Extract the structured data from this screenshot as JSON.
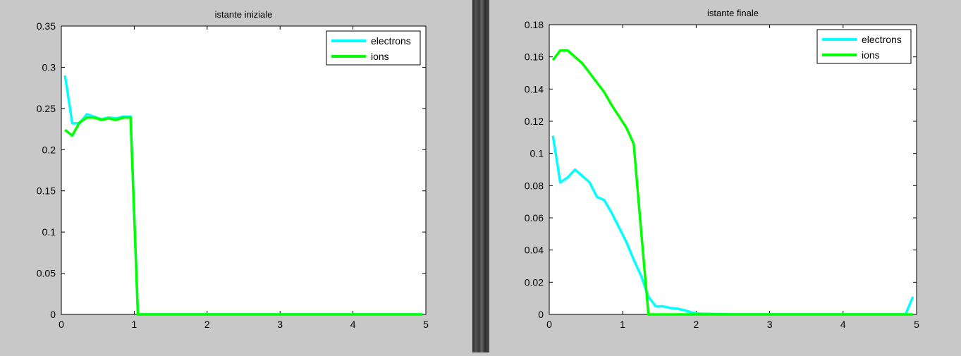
{
  "chart_data": [
    {
      "type": "line",
      "title": "istante iniziale",
      "xlabel": "",
      "ylabel": "",
      "xlim": [
        0,
        5
      ],
      "ylim": [
        0,
        0.35
      ],
      "xticks": [
        "0",
        "1",
        "2",
        "3",
        "4",
        "5"
      ],
      "yticks": [
        "0",
        "0.05",
        "0.1",
        "0.15",
        "0.2",
        "0.25",
        "0.3",
        "0.35"
      ],
      "grid": false,
      "legend_position": "top-right",
      "series": [
        {
          "name": "electrons",
          "color": "#00ffff",
          "x": [
            0.05,
            0.15,
            0.25,
            0.35,
            0.45,
            0.55,
            0.65,
            0.75,
            0.85,
            0.95,
            1.05,
            1.5,
            2.0,
            2.5,
            3.0,
            3.5,
            4.0,
            4.5,
            4.95
          ],
          "y": [
            0.29,
            0.232,
            0.232,
            0.243,
            0.24,
            0.237,
            0.239,
            0.238,
            0.24,
            0.24,
            0.0,
            0.0,
            0.0,
            0.0,
            0.0,
            0.0,
            0.0,
            0.0,
            0.0
          ]
        },
        {
          "name": "ions",
          "color": "#00ff00",
          "x": [
            0.05,
            0.15,
            0.25,
            0.35,
            0.45,
            0.55,
            0.65,
            0.75,
            0.85,
            0.95,
            1.05,
            1.5,
            2.0,
            2.5,
            3.0,
            3.5,
            4.0,
            4.5,
            4.95
          ],
          "y": [
            0.224,
            0.217,
            0.233,
            0.239,
            0.239,
            0.236,
            0.238,
            0.236,
            0.239,
            0.239,
            0.0,
            0.0,
            0.0,
            0.0,
            0.0,
            0.0,
            0.0,
            0.0,
            0.0
          ]
        }
      ]
    },
    {
      "type": "line",
      "title": "istante finale",
      "xlabel": "",
      "ylabel": "",
      "xlim": [
        0,
        5
      ],
      "ylim": [
        0,
        0.18
      ],
      "xticks": [
        "0",
        "1",
        "2",
        "3",
        "4",
        "5"
      ],
      "yticks": [
        "0",
        "0.02",
        "0.04",
        "0.06",
        "0.08",
        "0.1",
        "0.12",
        "0.14",
        "0.16",
        "0.18"
      ],
      "grid": false,
      "legend_position": "top-right",
      "series": [
        {
          "name": "electrons",
          "color": "#00ffff",
          "x": [
            0.05,
            0.15,
            0.25,
            0.35,
            0.45,
            0.55,
            0.65,
            0.75,
            0.85,
            0.95,
            1.05,
            1.15,
            1.25,
            1.35,
            1.45,
            1.55,
            1.65,
            1.75,
            1.85,
            1.95,
            2.05,
            2.5,
            3.0,
            3.5,
            4.0,
            4.5,
            4.85,
            4.95
          ],
          "y": [
            0.111,
            0.082,
            0.085,
            0.09,
            0.086,
            0.082,
            0.073,
            0.071,
            0.063,
            0.054,
            0.045,
            0.034,
            0.024,
            0.011,
            0.005,
            0.005,
            0.004,
            0.0035,
            0.0025,
            0.001,
            0.0005,
            0.0,
            0.0,
            0.0,
            0.0,
            0.0,
            0.0,
            0.011
          ]
        },
        {
          "name": "ions",
          "color": "#00ff00",
          "x": [
            0.05,
            0.15,
            0.25,
            0.35,
            0.45,
            0.55,
            0.65,
            0.75,
            0.85,
            0.95,
            1.05,
            1.15,
            1.25,
            1.35,
            1.5,
            2.0,
            2.5,
            3.0,
            3.5,
            4.0,
            4.5,
            4.95
          ],
          "y": [
            0.158,
            0.164,
            0.164,
            0.16,
            0.156,
            0.15,
            0.144,
            0.138,
            0.13,
            0.123,
            0.116,
            0.106,
            0.052,
            0.0,
            0.0,
            0.0,
            0.0,
            0.0,
            0.0,
            0.0,
            0.0,
            0.0
          ]
        }
      ]
    }
  ]
}
